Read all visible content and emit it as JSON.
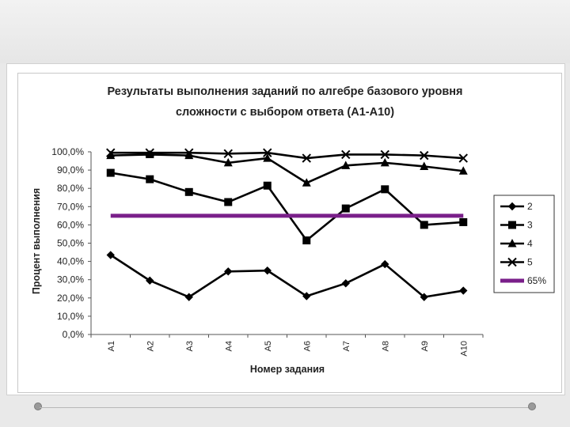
{
  "chart_data": {
    "type": "line",
    "title": "Результаты выполнения заданий по алгебре базового уровня\nсложности с выбором ответа (А1-А10)",
    "xlabel": "Номер задания",
    "ylabel": "Процент выполнения",
    "categories": [
      "A1",
      "A2",
      "A3",
      "A4",
      "A5",
      "A6",
      "A7",
      "A8",
      "A9",
      "A10"
    ],
    "ylim": [
      0,
      100
    ],
    "y_ticks": [
      "0,0%",
      "10,0%",
      "20,0%",
      "30,0%",
      "40,0%",
      "50,0%",
      "60,0%",
      "70,0%",
      "80,0%",
      "90,0%",
      "100,0%"
    ],
    "grid": false,
    "legend_position": "right",
    "series": [
      {
        "name": "2",
        "marker": "diamond",
        "color": "#000000",
        "values": [
          43.5,
          29.5,
          20.5,
          34.5,
          35,
          21,
          28,
          38.5,
          20.5,
          24
        ]
      },
      {
        "name": "3",
        "marker": "square",
        "color": "#000000",
        "values": [
          88.5,
          85,
          78,
          72.5,
          81.5,
          51.5,
          69,
          79.5,
          60,
          61.5
        ]
      },
      {
        "name": "4",
        "marker": "triangle",
        "color": "#000000",
        "values": [
          98,
          98.5,
          98,
          94,
          96.5,
          83,
          92.5,
          94,
          92,
          89.5
        ]
      },
      {
        "name": "5",
        "marker": "x",
        "color": "#000000",
        "values": [
          99.5,
          99.5,
          99.5,
          99,
          99.5,
          96.5,
          98.5,
          98.5,
          98,
          96.5
        ]
      },
      {
        "name": "65%",
        "marker": "none",
        "color": "#7a1f8a",
        "values": [
          65,
          65,
          65,
          65,
          65,
          65,
          65,
          65,
          65,
          65
        ]
      }
    ]
  }
}
